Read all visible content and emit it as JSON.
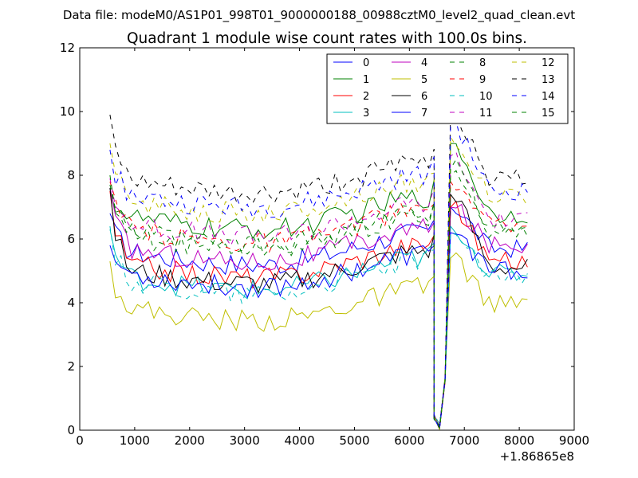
{
  "chart_data": {
    "type": "line",
    "suptitle": "Data file: modeM0/AS1P01_998T01_9000000188_00988cztM0_level2_quad_clean.evt",
    "title": "Quadrant 1 module wise count rates with 100.0s bins.",
    "xlabel": "",
    "ylabel": "",
    "x_offset_label": "+1.86865e8",
    "xlim": [
      0,
      9000
    ],
    "ylim": [
      0,
      12
    ],
    "xticks": [
      0,
      1000,
      2000,
      3000,
      4000,
      5000,
      6000,
      7000,
      8000,
      9000
    ],
    "xtick_labels": [
      "0",
      "1000",
      "2000",
      "3000",
      "4000",
      "5000",
      "6000",
      "7000",
      "8000",
      "9000"
    ],
    "yticks": [
      0,
      2,
      4,
      6,
      8,
      10,
      12
    ],
    "ytick_labels": [
      "0",
      "2",
      "4",
      "6",
      "8",
      "10",
      "12"
    ],
    "grid": false,
    "legend_position": "top-right",
    "series": [
      {
        "name": "0",
        "color": "#0000ff",
        "dashed": false,
        "base": 5.7,
        "spike": 7.0,
        "start": 6.8
      },
      {
        "name": "1",
        "color": "#008000",
        "dashed": false,
        "base": 6.8,
        "spike": 9.0,
        "start": 7.6
      },
      {
        "name": "2",
        "color": "#ff0000",
        "dashed": false,
        "base": 5.3,
        "spike": 7.0,
        "start": 7.5
      },
      {
        "name": "3",
        "color": "#00bfbf",
        "dashed": false,
        "base": 4.9,
        "spike": 6.4,
        "start": 6.3
      },
      {
        "name": "4",
        "color": "#bf00bf",
        "dashed": false,
        "base": 5.8,
        "spike": 7.0,
        "start": 7.6
      },
      {
        "name": "5",
        "color": "#bfbf00",
        "dashed": false,
        "base": 3.95,
        "spike": 5.4,
        "start": 5.3
      },
      {
        "name": "6",
        "color": "#000000",
        "dashed": false,
        "base": 5.1,
        "spike": 7.4,
        "start": 7.6
      },
      {
        "name": "7",
        "color": "#0000ff",
        "dashed": false,
        "base": 5.0,
        "spike": 6.2,
        "start": 5.8
      },
      {
        "name": "8",
        "color": "#008000",
        "dashed": true,
        "base": 6.2,
        "spike": 8.0,
        "start": 7.7
      },
      {
        "name": "9",
        "color": "#ff0000",
        "dashed": true,
        "base": 6.4,
        "spike": 7.8,
        "start": 7.8
      },
      {
        "name": "10",
        "color": "#00bfbf",
        "dashed": true,
        "base": 4.8,
        "spike": 6.2,
        "start": 6.4
      },
      {
        "name": "11",
        "color": "#bf00bf",
        "dashed": true,
        "base": 6.6,
        "spike": 8.6,
        "start": 7.9
      },
      {
        "name": "12",
        "color": "#bfbf00",
        "dashed": true,
        "base": 7.3,
        "spike": 9.2,
        "start": 9.0
      },
      {
        "name": "13",
        "color": "#000000",
        "dashed": true,
        "base": 7.9,
        "spike": 10.0,
        "start": 9.9
      },
      {
        "name": "14",
        "color": "#0000ff",
        "dashed": true,
        "base": 7.5,
        "spike": 9.6,
        "start": 8.8
      },
      {
        "name": "15",
        "color": "#008000",
        "dashed": true,
        "base": 6.3,
        "spike": 8.2,
        "start": 8.0
      }
    ],
    "x": {
      "start": 550,
      "end": 8200,
      "step": 100
    },
    "dip": {
      "x": [
        6450,
        6550,
        6650
      ],
      "values": [
        0.3,
        0.0,
        1.5
      ]
    }
  }
}
